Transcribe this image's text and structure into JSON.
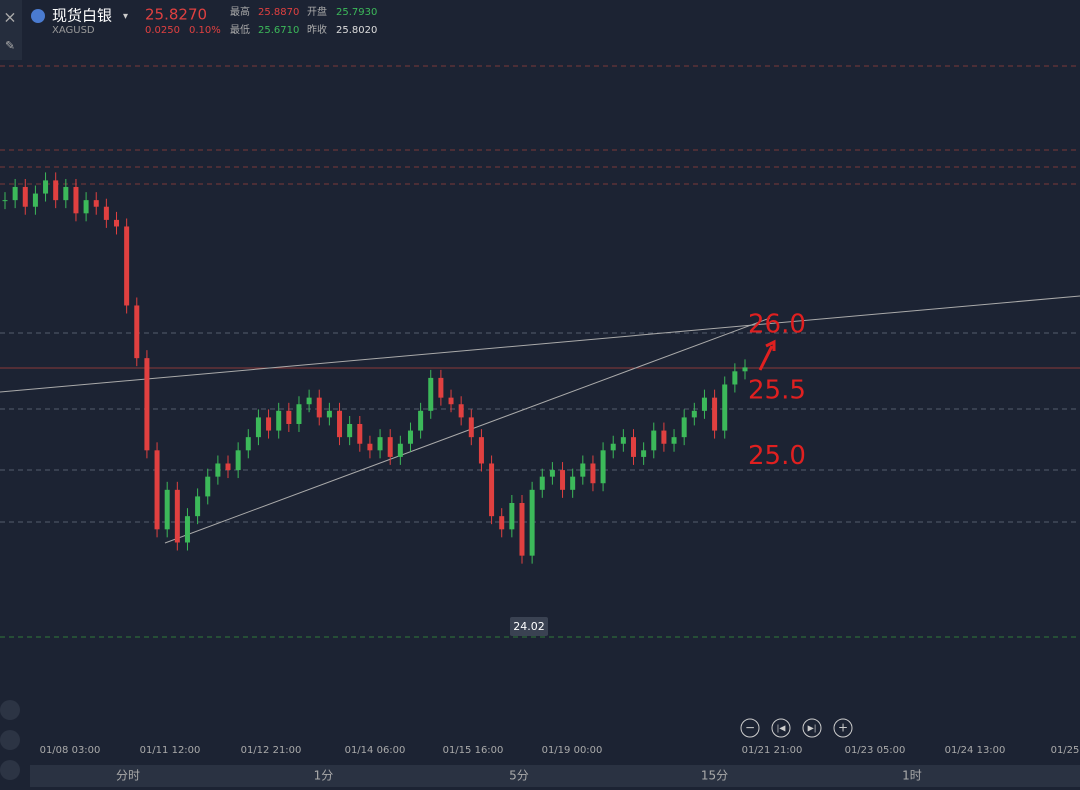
{
  "header": {
    "name": "现货白银",
    "symbol": "XAGUSD",
    "price": "25.8270",
    "change": "0.0250",
    "change_pct": "0.10%",
    "high_label": "最高",
    "high": "25.8870",
    "open_label": "开盘",
    "open": "25.7930",
    "low_label": "最低",
    "low": "25.6710",
    "prev_label": "昨收",
    "prev": "25.8020"
  },
  "chart_data": {
    "type": "candlestick",
    "ylim": [
      23.0,
      28.62
    ],
    "closes": [
      27.1,
      27.2,
      27.05,
      27.15,
      27.25,
      27.1,
      27.2,
      27.0,
      27.1,
      27.05,
      26.95,
      26.9,
      26.3,
      25.9,
      25.2,
      24.6,
      24.9,
      24.5,
      24.7,
      24.85,
      25.0,
      25.1,
      25.05,
      25.2,
      25.3,
      25.45,
      25.35,
      25.5,
      25.4,
      25.55,
      25.6,
      25.45,
      25.5,
      25.3,
      25.4,
      25.25,
      25.2,
      25.3,
      25.15,
      25.25,
      25.35,
      25.5,
      25.75,
      25.6,
      25.55,
      25.45,
      25.3,
      25.1,
      24.7,
      24.6,
      24.8,
      24.4,
      24.9,
      25.0,
      25.05,
      24.9,
      25.0,
      25.1,
      24.95,
      25.2,
      25.25,
      25.3,
      25.15,
      25.2,
      25.35,
      25.25,
      25.3,
      25.45,
      25.5,
      25.6,
      25.35,
      25.7,
      25.8,
      25.83
    ],
    "up_color": "#3cb95a",
    "down_color": "#e04040",
    "low_tag": "24.02",
    "annotations": [
      {
        "text": "26.0",
        "value": 26.0
      },
      {
        "text": "25.5",
        "value": 25.5
      },
      {
        "text": "25.0",
        "value": 25.0
      }
    ]
  },
  "x_labels": [
    "01/08 03:00",
    "01/11 12:00",
    "01/12 21:00",
    "01/14 06:00",
    "01/15 16:00",
    "01/19 00:00",
    "01/21 21:00",
    "01/23 05:00",
    "01/24 13:00",
    "01/25"
  ],
  "tabs": [
    "分时",
    "1分",
    "5分",
    "15分",
    "1时"
  ]
}
